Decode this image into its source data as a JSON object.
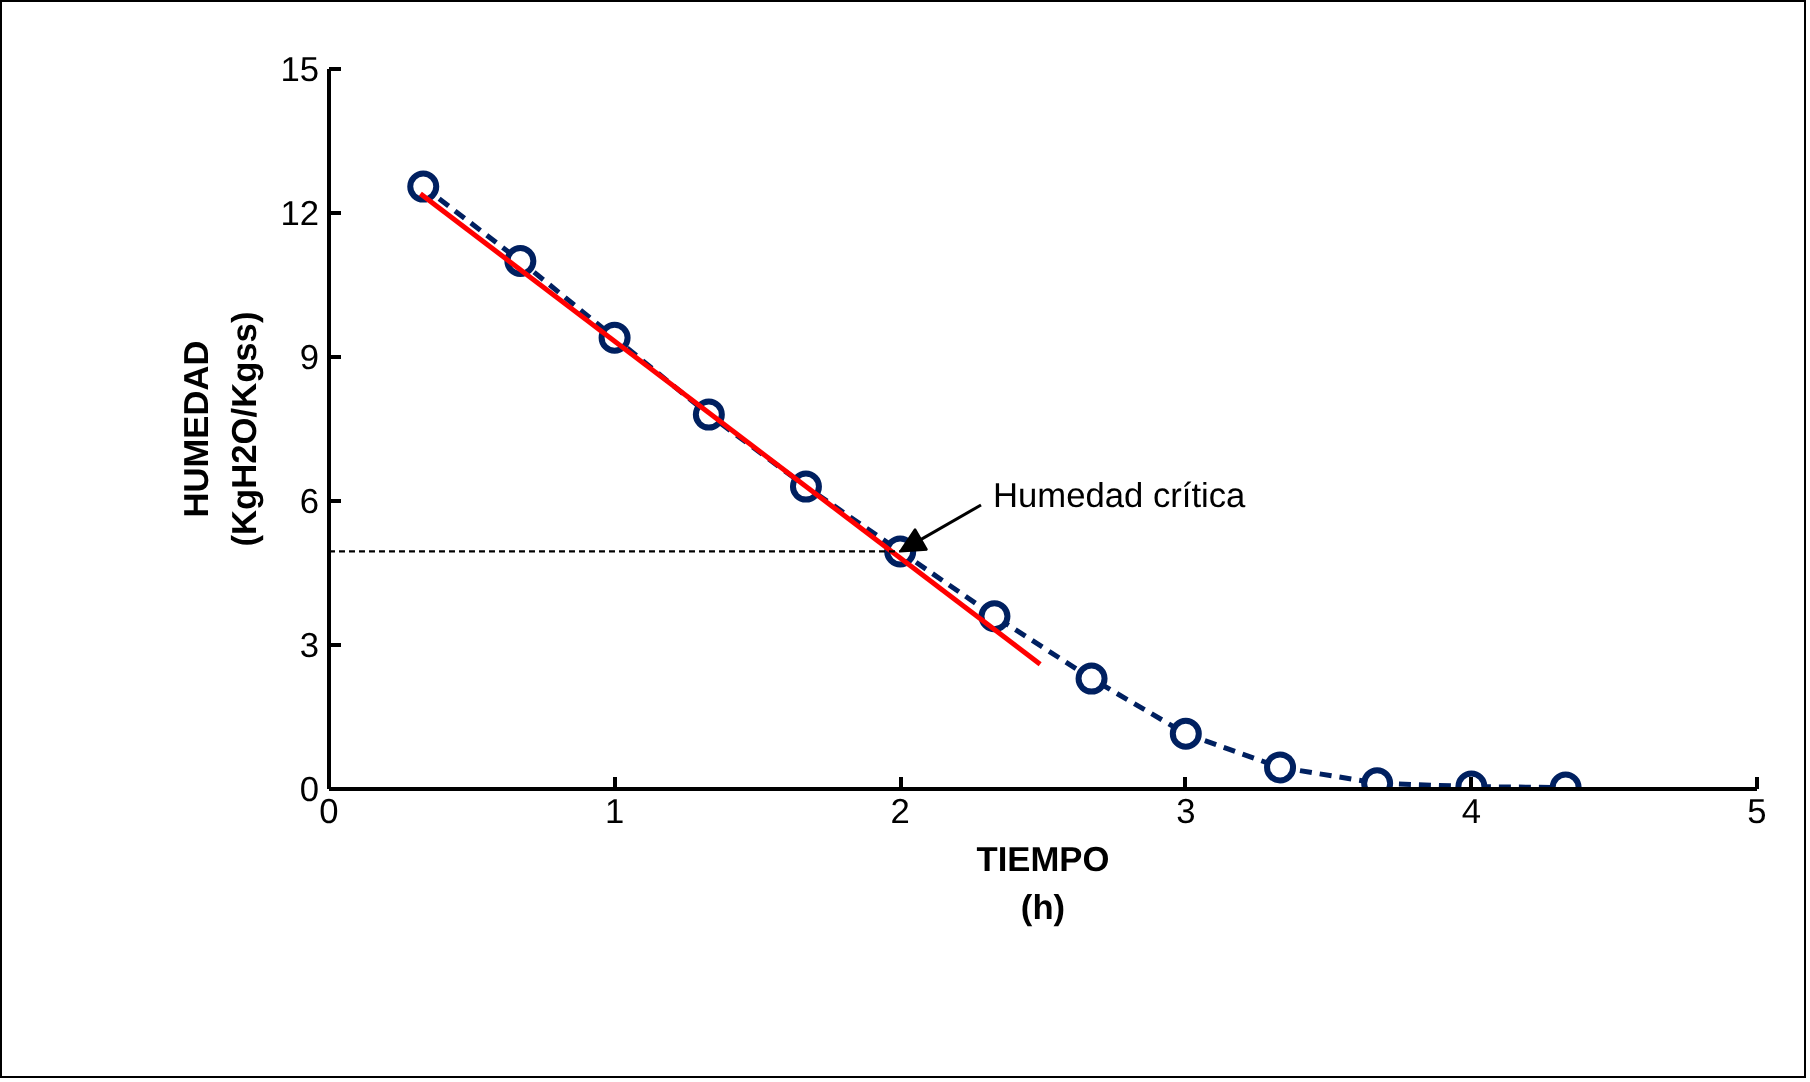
{
  "chart_data": {
    "type": "line",
    "xlabel": "TIEMPO\n(h)",
    "ylabel": "HUMEDAD\n(KgH2O/Kgss)",
    "xlim": [
      0,
      5
    ],
    "ylim": [
      0,
      15
    ],
    "xticks": [
      0,
      1,
      2,
      3,
      4,
      5
    ],
    "yticks": [
      0,
      3,
      6,
      9,
      12,
      15
    ],
    "grid": false,
    "series": [
      {
        "color": "#002060",
        "marker": "circle",
        "line_style": "dashed",
        "x": [
          0.33,
          0.67,
          1.0,
          1.33,
          1.67,
          2.0,
          2.33,
          2.67,
          3.0,
          3.33,
          3.67,
          4.0,
          4.33
        ],
        "values": [
          12.55,
          11.0,
          9.4,
          7.8,
          6.3,
          4.95,
          3.6,
          2.3,
          1.15,
          0.45,
          0.12,
          0.05,
          0.03
        ]
      },
      {
        "type": "line",
        "color": "#ff0000",
        "marker": "none",
        "line_style": "solid",
        "x": [
          0.32,
          2.49
        ],
        "values": [
          12.4,
          2.6
        ]
      },
      {
        "type": "line",
        "color": "#000000",
        "marker": "none",
        "line_style": "dotted",
        "x": [
          0,
          2.0
        ],
        "values": [
          4.95,
          4.95
        ]
      }
    ],
    "annotations": [
      {
        "text": "Humedad crítica",
        "x": 2.0,
        "y": 4.95
      }
    ]
  }
}
